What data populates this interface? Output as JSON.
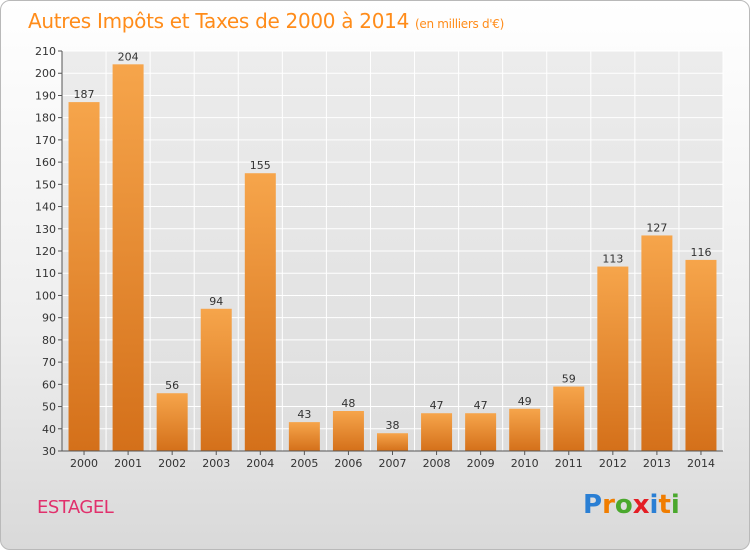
{
  "header": {
    "title": "Autres Impôts et Taxes de 2000 à 2014",
    "subtitle": "(en milliers d'€)"
  },
  "footer": {
    "commune": "ESTAGEL",
    "logo": {
      "letters": [
        "P",
        "r",
        "o",
        "x",
        "i",
        "t",
        "i"
      ],
      "colors": [
        "#2a7fd4",
        "#f07d00",
        "#4aa82d",
        "#e41e25",
        "#2a7fd4",
        "#f07d00",
        "#4aa82d"
      ]
    }
  },
  "colors": {
    "bar_light": "#f6a54b",
    "bar_dark": "#d9731c",
    "axis": "#555555",
    "grid": "#ffffff",
    "accent": "#ff8c1a"
  },
  "chart_data": {
    "type": "bar",
    "title": "Autres Impôts et Taxes de 2000 à 2014",
    "subtitle": "(en milliers d'€)",
    "categories": [
      "2000",
      "2001",
      "2002",
      "2003",
      "2004",
      "2005",
      "2006",
      "2007",
      "2008",
      "2009",
      "2010",
      "2011",
      "2012",
      "2013",
      "2014"
    ],
    "values": [
      187,
      204,
      56,
      94,
      155,
      43,
      48,
      38,
      47,
      47,
      49,
      59,
      113,
      127,
      116
    ],
    "ylim": [
      30,
      210
    ],
    "yticks": [
      30,
      40,
      50,
      60,
      70,
      80,
      90,
      100,
      110,
      120,
      130,
      140,
      150,
      160,
      170,
      180,
      190,
      200,
      210
    ],
    "grid": true,
    "xlabel": "",
    "ylabel": ""
  }
}
